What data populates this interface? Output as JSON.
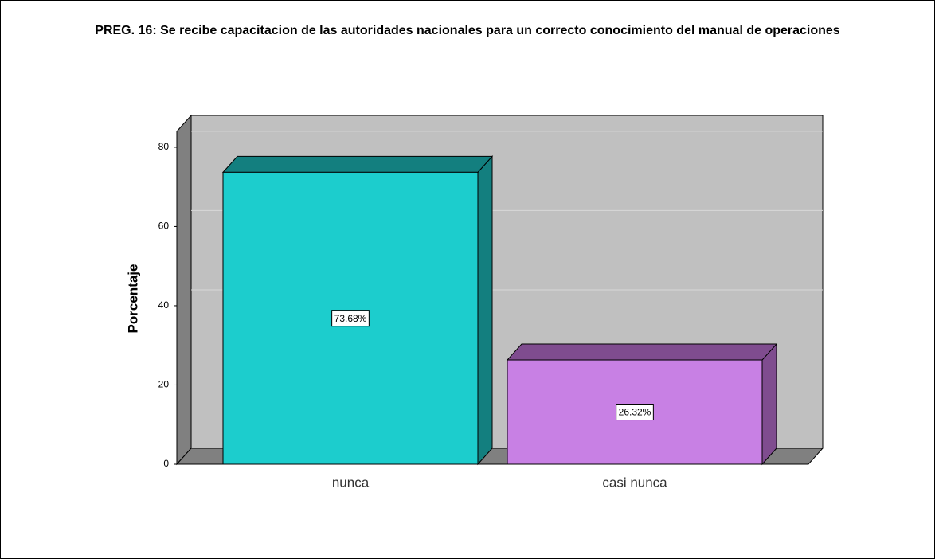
{
  "chart_data": {
    "type": "bar3d",
    "title": "PREG. 16: Se recibe capacitacion de las autoridades nacionales para un correcto conocimiento del manual de operaciones",
    "ylabel": "Porcentaje",
    "categories": [
      "nunca",
      "casi nunca"
    ],
    "values": [
      73.68,
      26.32
    ],
    "value_labels": [
      "73.68%",
      "26.32%"
    ],
    "colors": [
      "#1ccdcd",
      "#c880e4"
    ],
    "side_colors": [
      "#137f7f",
      "#7f4c8f"
    ],
    "ylim": [
      0,
      84
    ],
    "yticks": [
      0,
      20,
      40,
      60,
      80
    ],
    "grid": true
  }
}
